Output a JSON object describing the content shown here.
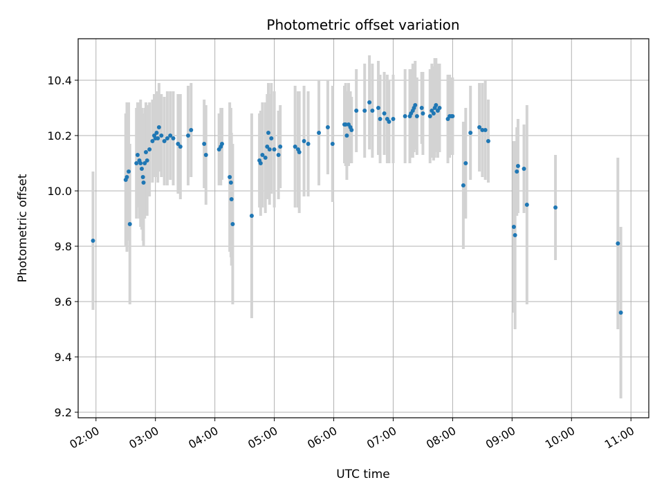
{
  "chart_data": {
    "type": "scatter",
    "title": "Photometric offset variation",
    "xlabel": "UTC time",
    "ylabel": "Photometric offset",
    "x_unit": "hours UTC",
    "xlim": [
      1.7,
      11.3
    ],
    "ylim": [
      9.18,
      10.55
    ],
    "x_ticks": [
      2,
      3,
      4,
      5,
      6,
      7,
      8,
      9,
      10,
      11
    ],
    "x_tick_labels": [
      "02:00",
      "03:00",
      "04:00",
      "05:00",
      "06:00",
      "07:00",
      "08:00",
      "09:00",
      "10:00",
      "11:00"
    ],
    "y_ticks": [
      9.2,
      9.4,
      9.6,
      9.8,
      10.0,
      10.2,
      10.4
    ],
    "y_tick_labels": [
      "9.2",
      "9.4",
      "9.6",
      "9.8",
      "10.0",
      "10.2",
      "10.4"
    ],
    "grid": true,
    "point_color": "#1f77b4",
    "errorbar_color": "#d3d3d3",
    "series": [
      {
        "values": [
          [
            1.95,
            9.82,
            0.25
          ],
          [
            2.5,
            10.04,
            0.24
          ],
          [
            2.52,
            10.05,
            0.27
          ],
          [
            2.55,
            10.07,
            0.25
          ],
          [
            2.57,
            9.88,
            0.29
          ],
          [
            2.68,
            10.1,
            0.2
          ],
          [
            2.7,
            10.13,
            0.19
          ],
          [
            2.73,
            10.11,
            0.21
          ],
          [
            2.75,
            10.1,
            0.23
          ],
          [
            2.77,
            10.08,
            0.22
          ],
          [
            2.79,
            10.05,
            0.23
          ],
          [
            2.8,
            10.03,
            0.23
          ],
          [
            2.82,
            10.1,
            0.2
          ],
          [
            2.84,
            10.14,
            0.18
          ],
          [
            2.86,
            10.11,
            0.2
          ],
          [
            2.9,
            10.15,
            0.17
          ],
          [
            2.95,
            10.18,
            0.15
          ],
          [
            2.98,
            10.2,
            0.15
          ],
          [
            3.0,
            10.19,
            0.14
          ],
          [
            3.02,
            10.21,
            0.15
          ],
          [
            3.04,
            10.19,
            0.16
          ],
          [
            3.06,
            10.23,
            0.16
          ],
          [
            3.1,
            10.2,
            0.15
          ],
          [
            3.15,
            10.18,
            0.16
          ],
          [
            3.2,
            10.19,
            0.17
          ],
          [
            3.25,
            10.2,
            0.16
          ],
          [
            3.3,
            10.19,
            0.17
          ],
          [
            3.38,
            10.17,
            0.18
          ],
          [
            3.42,
            10.16,
            0.19
          ],
          [
            3.55,
            10.2,
            0.18
          ],
          [
            3.6,
            10.22,
            0.17
          ],
          [
            3.82,
            10.17,
            0.16
          ],
          [
            3.85,
            10.13,
            0.18
          ],
          [
            4.07,
            10.15,
            0.13
          ],
          [
            4.1,
            10.16,
            0.14
          ],
          [
            4.12,
            10.17,
            0.13
          ],
          [
            4.25,
            10.05,
            0.27
          ],
          [
            4.27,
            10.03,
            0.27
          ],
          [
            4.28,
            9.97,
            0.24
          ],
          [
            4.3,
            9.88,
            0.29
          ],
          [
            4.62,
            9.91,
            0.37
          ],
          [
            4.75,
            10.11,
            0.17
          ],
          [
            4.77,
            10.1,
            0.19
          ],
          [
            4.8,
            10.13,
            0.19
          ],
          [
            4.85,
            10.12,
            0.2
          ],
          [
            4.88,
            10.16,
            0.19
          ],
          [
            4.9,
            10.21,
            0.18
          ],
          [
            4.92,
            10.15,
            0.2
          ],
          [
            4.95,
            10.19,
            0.2
          ],
          [
            5.0,
            10.15,
            0.21
          ],
          [
            5.07,
            10.13,
            0.16
          ],
          [
            5.1,
            10.16,
            0.15
          ],
          [
            5.35,
            10.16,
            0.22
          ],
          [
            5.4,
            10.15,
            0.21
          ],
          [
            5.42,
            10.14,
            0.22
          ],
          [
            5.5,
            10.18,
            0.2
          ],
          [
            5.57,
            10.17,
            0.19
          ],
          [
            5.75,
            10.21,
            0.19
          ],
          [
            5.9,
            10.23,
            0.17
          ],
          [
            5.98,
            10.17,
            0.21
          ],
          [
            6.18,
            10.24,
            0.14
          ],
          [
            6.2,
            10.24,
            0.15
          ],
          [
            6.22,
            10.2,
            0.16
          ],
          [
            6.25,
            10.24,
            0.15
          ],
          [
            6.28,
            10.23,
            0.13
          ],
          [
            6.3,
            10.22,
            0.12
          ],
          [
            6.38,
            10.29,
            0.15
          ],
          [
            6.52,
            10.29,
            0.17
          ],
          [
            6.6,
            10.32,
            0.17
          ],
          [
            6.65,
            10.29,
            0.17
          ],
          [
            6.75,
            10.3,
            0.17
          ],
          [
            6.78,
            10.26,
            0.16
          ],
          [
            6.85,
            10.28,
            0.15
          ],
          [
            6.9,
            10.26,
            0.16
          ],
          [
            6.93,
            10.25,
            0.15
          ],
          [
            7.0,
            10.26,
            0.16
          ],
          [
            7.2,
            10.27,
            0.17
          ],
          [
            7.28,
            10.27,
            0.17
          ],
          [
            7.3,
            10.28,
            0.16
          ],
          [
            7.33,
            10.29,
            0.17
          ],
          [
            7.35,
            10.3,
            0.16
          ],
          [
            7.37,
            10.31,
            0.16
          ],
          [
            7.4,
            10.27,
            0.14
          ],
          [
            7.48,
            10.3,
            0.13
          ],
          [
            7.5,
            10.28,
            0.15
          ],
          [
            7.62,
            10.27,
            0.17
          ],
          [
            7.65,
            10.29,
            0.17
          ],
          [
            7.68,
            10.28,
            0.17
          ],
          [
            7.7,
            10.3,
            0.18
          ],
          [
            7.72,
            10.31,
            0.17
          ],
          [
            7.75,
            10.29,
            0.17
          ],
          [
            7.78,
            10.3,
            0.16
          ],
          [
            7.92,
            10.26,
            0.16
          ],
          [
            7.95,
            10.27,
            0.15
          ],
          [
            7.98,
            10.27,
            0.14
          ],
          [
            8.0,
            10.27,
            0.14
          ],
          [
            8.18,
            10.02,
            0.23
          ],
          [
            8.22,
            10.1,
            0.2
          ],
          [
            8.3,
            10.21,
            0.17
          ],
          [
            8.45,
            10.23,
            0.16
          ],
          [
            8.5,
            10.22,
            0.17
          ],
          [
            8.55,
            10.22,
            0.18
          ],
          [
            8.6,
            10.18,
            0.15
          ],
          [
            9.03,
            9.87,
            0.31
          ],
          [
            9.05,
            9.84,
            0.34
          ],
          [
            9.08,
            10.07,
            0.16
          ],
          [
            9.1,
            10.09,
            0.17
          ],
          [
            9.2,
            10.08,
            0.16
          ],
          [
            9.25,
            9.95,
            0.36
          ],
          [
            9.73,
            9.94,
            0.19
          ],
          [
            10.78,
            9.81,
            0.31
          ],
          [
            10.83,
            9.56,
            0.31
          ]
        ]
      }
    ]
  }
}
